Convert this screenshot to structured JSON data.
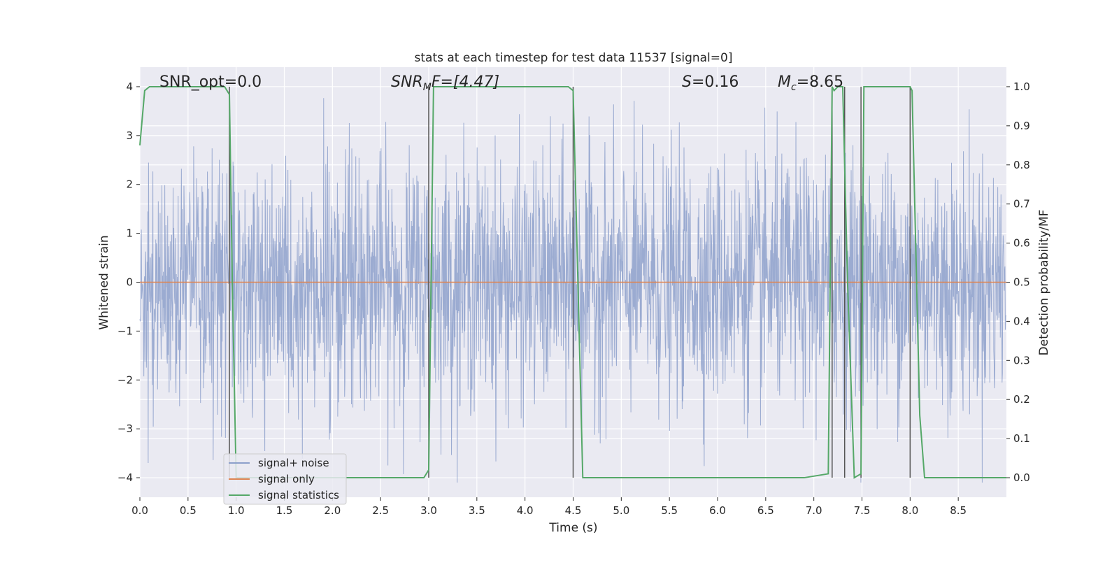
{
  "chart_data": {
    "type": "line",
    "title": "stats at each timestep for test data 11537 [signal=0]",
    "xlabel": "Time (s)",
    "ylabel": "Whitened strain",
    "y2label": "Detection probability/MF",
    "xlim": [
      0,
      9
    ],
    "ylim": [
      -4.4,
      4.4
    ],
    "y2lim": [
      -0.05,
      1.05
    ],
    "x_ticks": [
      "0.0",
      "0.5",
      "1.0",
      "1.5",
      "2.0",
      "2.5",
      "3.0",
      "3.5",
      "4.0",
      "4.5",
      "5.0",
      "5.5",
      "6.0",
      "6.5",
      "7.0",
      "7.5",
      "8.0",
      "8.5"
    ],
    "y_ticks": [
      "4",
      "3",
      "2",
      "1",
      "0",
      "−1",
      "−2",
      "−3",
      "−4"
    ],
    "y2_ticks": [
      "1.0",
      "0.9",
      "0.8",
      "0.7",
      "0.6",
      "0.5",
      "0.4",
      "0.3",
      "0.2",
      "0.1",
      "0.0"
    ],
    "grid": true,
    "legend_position": "lower-left",
    "annotations": {
      "snr_opt": "SNR_opt=0.0",
      "snr_mf_main": "SNR",
      "snr_mf_sub": "M",
      "snr_mf_rest": "F=[4.47]",
      "s_main": "S",
      "s_rest": "=0.16",
      "mc_main": "M",
      "mc_sub": "c",
      "mc_rest": "=8.65"
    },
    "series": [
      {
        "name": "signal+ noise",
        "color": "#8da0cb",
        "description_values": "whitened strain noise, approx zero-mean, spanning about -4 to 4"
      },
      {
        "name": "signal only",
        "color": "#dd8452",
        "values_constant": 0
      },
      {
        "name": "signal statistics",
        "color": "#55a868",
        "axis": "right",
        "x": [
          0.0,
          0.05,
          0.1,
          0.2,
          0.5,
          0.8,
          0.88,
          0.93,
          0.96,
          1.0,
          2.0,
          2.95,
          3.0,
          3.05,
          3.5,
          4.0,
          4.45,
          4.5,
          4.6,
          5.0,
          6.0,
          6.9,
          7.15,
          7.19,
          7.21,
          7.25,
          7.3,
          7.35,
          7.42,
          7.49,
          7.52,
          7.55,
          7.6,
          8.0,
          8.02,
          8.1,
          8.15,
          8.5,
          9.0
        ],
        "y": [
          0.85,
          0.99,
          1.0,
          1.0,
          1.0,
          1.0,
          1.0,
          0.98,
          0.5,
          0.0,
          0.0,
          0.0,
          0.02,
          1.0,
          1.0,
          1.0,
          1.0,
          0.99,
          0.0,
          0.0,
          0.0,
          0.0,
          0.01,
          1.0,
          0.99,
          1.0,
          1.0,
          0.5,
          0.0,
          0.01,
          1.0,
          1.0,
          1.0,
          1.0,
          0.99,
          0.16,
          0.0,
          0.0,
          0.0
        ]
      }
    ],
    "vlines_x": [
      0.93,
      3.0,
      4.5,
      7.19,
      7.32,
      7.49,
      8.0
    ],
    "colors": {
      "plot_bg": "#eaeaf2",
      "grid": "#ffffff",
      "noise": "#8da0cb",
      "signal": "#dd8452",
      "stats": "#55a868",
      "vline": "#555555"
    }
  }
}
